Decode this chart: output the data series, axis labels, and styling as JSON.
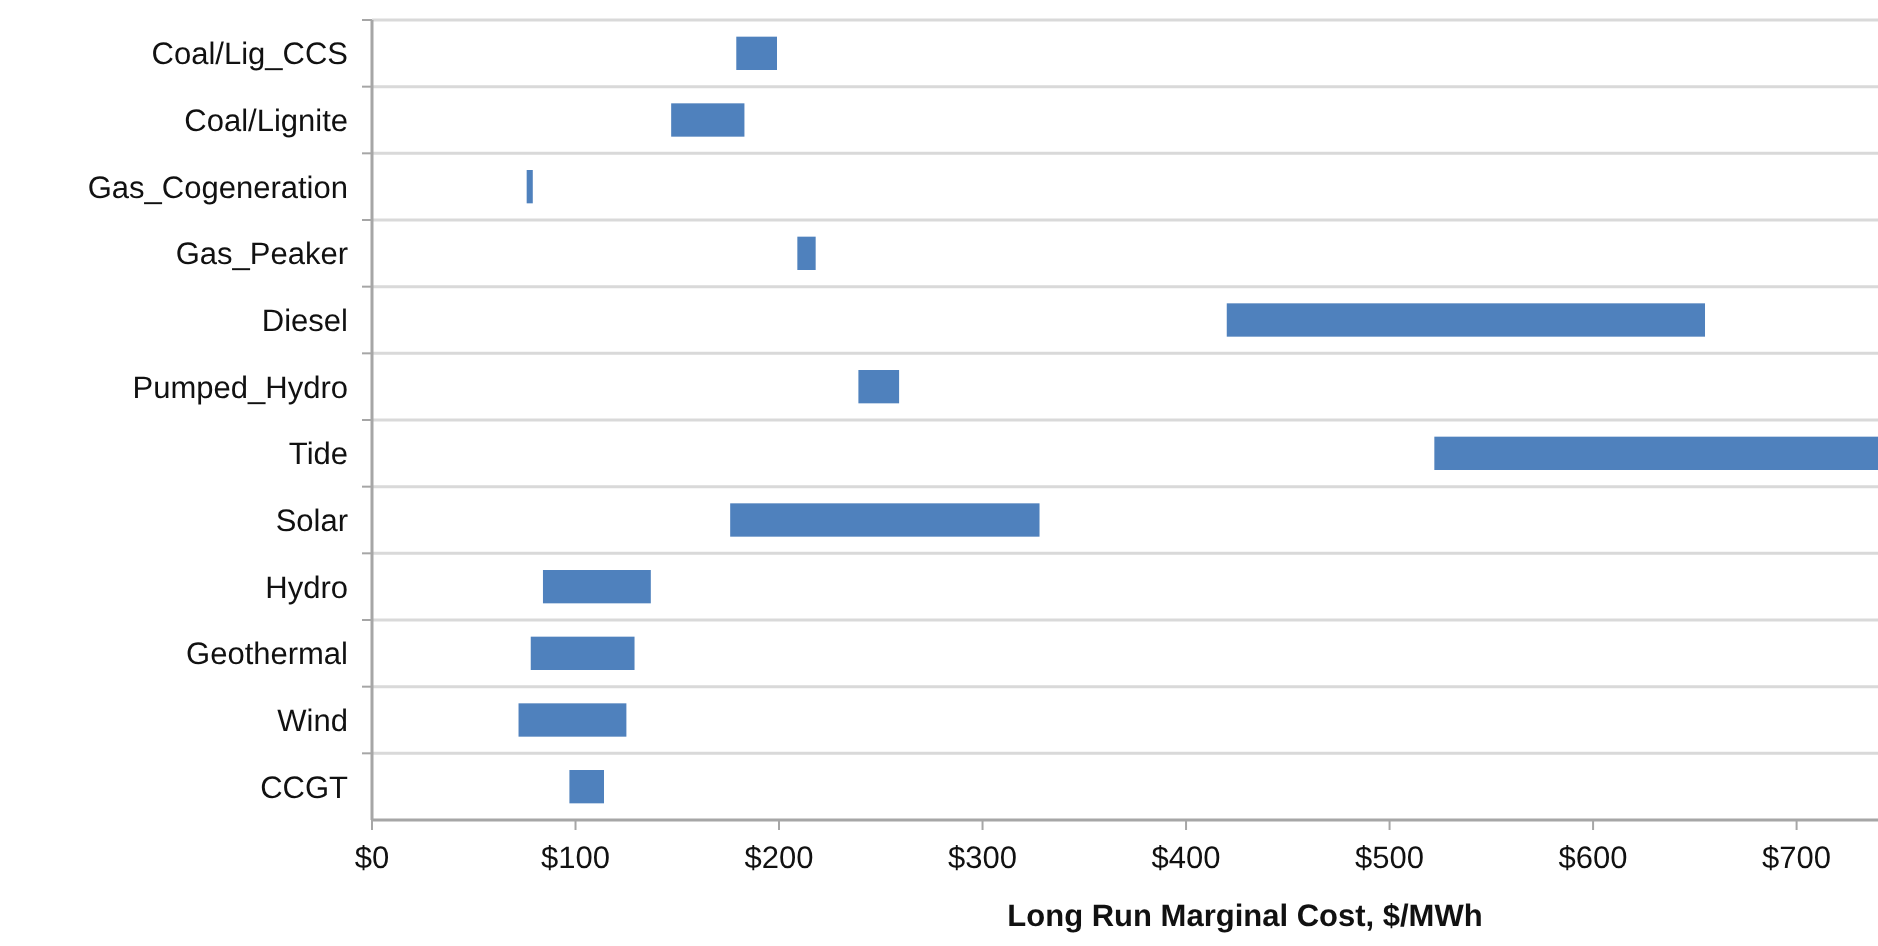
{
  "chart_data": {
    "type": "bar",
    "orientation": "horizontal",
    "xlabel": "Long Run Marginal Cost, $/MWh",
    "categories": [
      "Coal/Lig_CCS",
      "Coal/Lignite",
      "Gas_Cogeneration",
      "Gas_Peaker",
      "Diesel",
      "Pumped_Hydro",
      "Tide",
      "Solar",
      "Hydro",
      "Geothermal",
      "Wind",
      "CCGT"
    ],
    "base": [
      179,
      147,
      76,
      209,
      420,
      239,
      522,
      176,
      84,
      78,
      72,
      97
    ],
    "values": [
      20,
      36,
      3,
      9,
      235,
      20,
      218,
      152,
      53,
      51,
      53,
      17
    ],
    "color": "#4f81bd",
    "xlim": [
      0,
      740
    ],
    "xticks": [
      {
        "value": 0,
        "label": "$0"
      },
      {
        "value": 100,
        "label": "$100"
      },
      {
        "value": 200,
        "label": "$200"
      },
      {
        "value": 300,
        "label": "$300"
      },
      {
        "value": 400,
        "label": "$400"
      },
      {
        "value": 500,
        "label": "$500"
      },
      {
        "value": 600,
        "label": "$600"
      },
      {
        "value": 700,
        "label": "$700"
      }
    ],
    "grid": "y"
  }
}
